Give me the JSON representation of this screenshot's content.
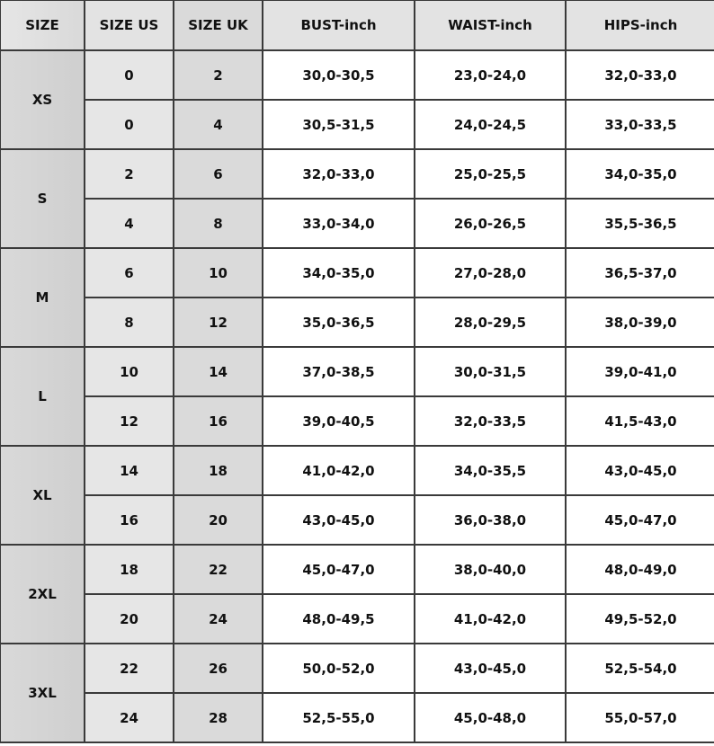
{
  "headers": [
    "SIZE",
    "SIZE US",
    "SIZE UK",
    "BUST-inch",
    "WAIST-inch",
    "HIPS-inch"
  ],
  "groups": [
    {
      "size": "XS",
      "rows": [
        [
          "0",
          "2",
          "30,0-30,5",
          "23,0-24,0",
          "32,0-33,0"
        ],
        [
          "0",
          "4",
          "30,5-31,5",
          "24,0-24,5",
          "33,0-33,5"
        ]
      ]
    },
    {
      "size": "S",
      "rows": [
        [
          "2",
          "6",
          "32,0-33,0",
          "25,0-25,5",
          "34,0-35,0"
        ],
        [
          "4",
          "8",
          "33,0-34,0",
          "26,0-26,5",
          "35,5-36,5"
        ]
      ]
    },
    {
      "size": "M",
      "rows": [
        [
          "6",
          "10",
          "34,0-35,0",
          "27,0-28,0",
          "36,5-37,0"
        ],
        [
          "8",
          "12",
          "35,0-36,5",
          "28,0-29,5",
          "38,0-39,0"
        ]
      ]
    },
    {
      "size": "L",
      "rows": [
        [
          "10",
          "14",
          "37,0-38,5",
          "30,0-31,5",
          "39,0-41,0"
        ],
        [
          "12",
          "16",
          "39,0-40,5",
          "32,0-33,5",
          "41,5-43,0"
        ]
      ]
    },
    {
      "size": "XL",
      "rows": [
        [
          "14",
          "18",
          "41,0-42,0",
          "34,0-35,5",
          "43,0-45,0"
        ],
        [
          "16",
          "20",
          "43,0-45,0",
          "36,0-38,0",
          "45,0-47,0"
        ]
      ]
    },
    {
      "size": "2XL",
      "rows": [
        [
          "18",
          "22",
          "45,0-47,0",
          "38,0-40,0",
          "48,0-49,0"
        ],
        [
          "20",
          "24",
          "48,0-49,5",
          "41,0-42,0",
          "49,5-52,0"
        ]
      ]
    },
    {
      "size": "3XL",
      "rows": [
        [
          "22",
          "26",
          "50,0-52,0",
          "43,0-45,0",
          "52,5-54,0"
        ],
        [
          "24",
          "28",
          "52,5-55,0",
          "45,0-48,0",
          "55,0-57,0"
        ]
      ]
    }
  ]
}
